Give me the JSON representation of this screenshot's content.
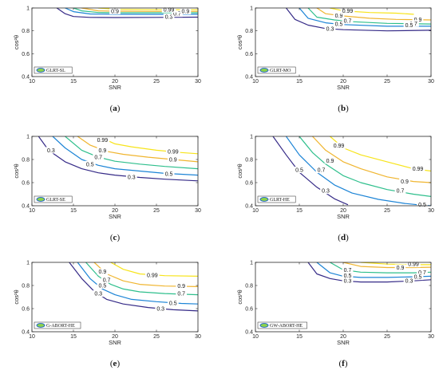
{
  "colors": {
    "0.3": "#352a87",
    "0.5": "#1c84d6",
    "0.7": "#2ebf8c",
    "0.9": "#f0b52f",
    "0.99": "#f7e41a",
    "axis": "#262626",
    "legend_ellipse_fill": "#8cd24a",
    "legend_ellipse_stroke": "#1d62c9"
  },
  "chart_data": [
    {
      "type": "contour",
      "caption": "(a)",
      "caption_letter": "a",
      "legend": "GLRT-SL",
      "legend_position": "bottom-left",
      "xlabel": "SNR",
      "ylabel": "cos²θ",
      "xlim": [
        10,
        30
      ],
      "ylim": [
        0.4,
        1
      ],
      "xticks": [
        "10",
        "15",
        "20",
        "25",
        "30"
      ],
      "yticks": [
        "0.4",
        "0.6",
        "0.8",
        "1"
      ],
      "grid": false,
      "levels": [
        {
          "level": "0.3",
          "x": [
            13.0,
            14.0,
            15.0,
            17.0,
            20.0,
            25.0,
            30.0
          ],
          "y": [
            1.0,
            0.95,
            0.925,
            0.918,
            0.916,
            0.918,
            0.92
          ]
        },
        {
          "level": "0.5",
          "x": [
            14.0,
            15.0,
            17.0,
            20.0,
            25.0,
            30.0
          ],
          "y": [
            1.0,
            0.968,
            0.948,
            0.945,
            0.944,
            0.945
          ]
        },
        {
          "level": "0.7",
          "x": [
            15.0,
            16.0,
            18.0,
            20.0,
            25.0,
            30.0
          ],
          "y": [
            1.0,
            0.975,
            0.96,
            0.958,
            0.958,
            0.958
          ]
        },
        {
          "level": "0.9",
          "x": [
            16.0,
            18.0,
            20.0,
            25.0,
            30.0
          ],
          "y": [
            1.0,
            0.975,
            0.972,
            0.97,
            0.97
          ]
        },
        {
          "level": "0.99",
          "x": [
            18.0,
            20.0,
            25.0,
            30.0
          ],
          "y": [
            1.0,
            0.988,
            0.985,
            0.985
          ]
        }
      ],
      "labels": [
        {
          "text": "0.3",
          "x": 26.5,
          "y": 0.925
        },
        {
          "text": "0.7",
          "x": 27.5,
          "y": 0.95
        },
        {
          "text": "0.9",
          "x": 20.0,
          "y": 0.973
        },
        {
          "text": "0.9",
          "x": 28.5,
          "y": 0.972
        },
        {
          "text": "0.99",
          "x": 26.5,
          "y": 0.987
        }
      ]
    },
    {
      "type": "contour",
      "caption": "(b)",
      "caption_letter": "b",
      "legend": "GLRT-MO",
      "legend_position": "bottom-left",
      "xlabel": "SNR",
      "ylabel": "cos²θ",
      "xlim": [
        10,
        30
      ],
      "ylim": [
        0.4,
        1
      ],
      "xticks": [
        "10",
        "15",
        "20",
        "25",
        "30"
      ],
      "yticks": [
        "0.4",
        "0.6",
        "0.8",
        "1"
      ],
      "grid": false,
      "levels": [
        {
          "level": "0.3",
          "x": [
            13.5,
            14.5,
            16.0,
            18.0,
            20.0,
            25.0,
            30.0
          ],
          "y": [
            1.0,
            0.9,
            0.85,
            0.82,
            0.81,
            0.8,
            0.805
          ]
        },
        {
          "level": "0.5",
          "x": [
            15.0,
            16.0,
            18.0,
            20.0,
            25.0,
            30.0
          ],
          "y": [
            1.0,
            0.91,
            0.87,
            0.855,
            0.84,
            0.84
          ]
        },
        {
          "level": "0.7",
          "x": [
            16.0,
            17.0,
            19.0,
            21.0,
            25.0,
            30.0
          ],
          "y": [
            1.0,
            0.92,
            0.895,
            0.88,
            0.865,
            0.86
          ]
        },
        {
          "level": "0.9",
          "x": [
            17.0,
            18.0,
            20.0,
            23.0,
            26.0,
            30.0
          ],
          "y": [
            1.0,
            0.95,
            0.93,
            0.91,
            0.9,
            0.895
          ]
        },
        {
          "level": "0.99",
          "x": [
            18.5,
            20.0,
            23.0,
            26.0,
            28.0
          ],
          "y": [
            1.0,
            0.975,
            0.96,
            0.955,
            0.945
          ]
        }
      ],
      "labels": [
        {
          "text": "0.3",
          "x": 18.5,
          "y": 0.82
        },
        {
          "text": "0.5",
          "x": 19.5,
          "y": 0.86
        },
        {
          "text": "0.7",
          "x": 20.5,
          "y": 0.89
        },
        {
          "text": "0.9",
          "x": 19.5,
          "y": 0.935
        },
        {
          "text": "0.99",
          "x": 20.5,
          "y": 0.975
        },
        {
          "text": "0.9",
          "x": 28.5,
          "y": 0.9
        },
        {
          "text": "0.7",
          "x": 28.0,
          "y": 0.865
        },
        {
          "text": "0.5",
          "x": 27.5,
          "y": 0.85
        }
      ]
    },
    {
      "type": "contour",
      "caption": "(c)",
      "caption_letter": "c",
      "legend": "GLRT-SE",
      "legend_position": "bottom-left",
      "xlabel": "SNR",
      "ylabel": "cos²θ",
      "xlim": [
        10,
        30
      ],
      "ylim": [
        0.4,
        1
      ],
      "xticks": [
        "10",
        "15",
        "20",
        "25",
        "30"
      ],
      "yticks": [
        "0.4",
        "0.6",
        "0.8",
        "1"
      ],
      "grid": false,
      "levels": [
        {
          "level": "0.3",
          "x": [
            10.8,
            12.0,
            14.0,
            16.0,
            18.0,
            20.0,
            23.0,
            26.0,
            30.0
          ],
          "y": [
            1.0,
            0.88,
            0.78,
            0.72,
            0.685,
            0.665,
            0.645,
            0.63,
            0.615
          ]
        },
        {
          "level": "0.5",
          "x": [
            12.5,
            14.0,
            16.0,
            18.0,
            20.0,
            23.0,
            26.0,
            30.0
          ],
          "y": [
            1.0,
            0.9,
            0.8,
            0.75,
            0.72,
            0.7,
            0.68,
            0.665
          ]
        },
        {
          "level": "0.7",
          "x": [
            14.0,
            16.0,
            18.0,
            20.0,
            23.0,
            26.0,
            30.0
          ],
          "y": [
            1.0,
            0.88,
            0.82,
            0.785,
            0.76,
            0.74,
            0.72
          ]
        },
        {
          "level": "0.9",
          "x": [
            15.5,
            17.0,
            19.0,
            21.0,
            24.0,
            27.0,
            30.0
          ],
          "y": [
            1.0,
            0.925,
            0.87,
            0.845,
            0.82,
            0.8,
            0.78
          ]
        },
        {
          "level": "0.99",
          "x": [
            18.0,
            20.0,
            22.0,
            25.0,
            28.0,
            30.0
          ],
          "y": [
            1.0,
            0.935,
            0.91,
            0.88,
            0.86,
            0.85
          ]
        }
      ],
      "labels": [
        {
          "text": "0.3",
          "x": 12.3,
          "y": 0.88
        },
        {
          "text": "0.5",
          "x": 17.0,
          "y": 0.76
        },
        {
          "text": "0.7",
          "x": 18.0,
          "y": 0.82
        },
        {
          "text": "0.9",
          "x": 18.5,
          "y": 0.88
        },
        {
          "text": "0.99",
          "x": 18.5,
          "y": 0.97
        },
        {
          "text": "0.3",
          "x": 22.0,
          "y": 0.65
        },
        {
          "text": "0.5",
          "x": 26.5,
          "y": 0.675
        },
        {
          "text": "0.9",
          "x": 27.0,
          "y": 0.8
        },
        {
          "text": "0.99",
          "x": 27.0,
          "y": 0.87
        }
      ]
    },
    {
      "type": "contour",
      "caption": "(d)",
      "caption_letter": "d",
      "legend": "GLRT-HE",
      "legend_position": "bottom-left",
      "xlabel": "SNR",
      "ylabel": "cos²θ",
      "xlim": [
        10,
        30
      ],
      "ylim": [
        0.4,
        1
      ],
      "xticks": [
        "10",
        "15",
        "20",
        "25",
        "30"
      ],
      "yticks": [
        "0.4",
        "0.6",
        "0.8",
        "1"
      ],
      "grid": false,
      "levels": [
        {
          "level": "0.3",
          "x": [
            12.0,
            13.5,
            15.0,
            17.0,
            19.0,
            20.5
          ],
          "y": [
            1.0,
            0.84,
            0.69,
            0.56,
            0.46,
            0.41
          ]
        },
        {
          "level": "0.5",
          "x": [
            13.5,
            15.0,
            17.0,
            19.0,
            21.0,
            24.0,
            27.0,
            29.0,
            30.0
          ],
          "y": [
            1.0,
            0.84,
            0.69,
            0.58,
            0.51,
            0.455,
            0.42,
            0.405,
            0.4
          ]
        },
        {
          "level": "0.7",
          "x": [
            15.0,
            16.5,
            18.0,
            20.0,
            22.0,
            25.0,
            28.0,
            30.0
          ],
          "y": [
            1.0,
            0.86,
            0.76,
            0.66,
            0.6,
            0.54,
            0.5,
            0.48
          ]
        },
        {
          "level": "0.9",
          "x": [
            16.5,
            18.0,
            20.0,
            22.0,
            25.0,
            28.0,
            30.0
          ],
          "y": [
            1.0,
            0.88,
            0.78,
            0.72,
            0.65,
            0.61,
            0.6
          ]
        },
        {
          "level": "0.99",
          "x": [
            18.5,
            20.0,
            22.0,
            25.0,
            28.0,
            30.0
          ],
          "y": [
            1.0,
            0.9,
            0.84,
            0.78,
            0.72,
            0.7
          ]
        }
      ],
      "labels": [
        {
          "text": "0.5",
          "x": 15.0,
          "y": 0.71
        },
        {
          "text": "0.3",
          "x": 18.0,
          "y": 0.53
        },
        {
          "text": "0.7",
          "x": 17.5,
          "y": 0.71
        },
        {
          "text": "0.9",
          "x": 18.5,
          "y": 0.79
        },
        {
          "text": "0.99",
          "x": 19.5,
          "y": 0.92
        },
        {
          "text": "0.99",
          "x": 28.5,
          "y": 0.72
        },
        {
          "text": "0.9",
          "x": 27.0,
          "y": 0.61
        },
        {
          "text": "0.7",
          "x": 26.5,
          "y": 0.53
        },
        {
          "text": "0.5",
          "x": 29.0,
          "y": 0.41
        }
      ]
    },
    {
      "type": "contour",
      "caption": "(e)",
      "caption_letter": "e",
      "legend": "G-ABORT-HE",
      "legend_position": "bottom-left",
      "xlabel": "SNR",
      "ylabel": "cos²θ",
      "xlim": [
        10,
        30
      ],
      "ylim": [
        0.4,
        1
      ],
      "xticks": [
        "10",
        "15",
        "20",
        "25",
        "30"
      ],
      "yticks": [
        "0.4",
        "0.6",
        "0.8",
        "1"
      ],
      "grid": false,
      "levels": [
        {
          "level": "0.3",
          "x": [
            14.5,
            16.0,
            17.5,
            19.0,
            21.0,
            24.0,
            27.0,
            30.0
          ],
          "y": [
            1.0,
            0.86,
            0.75,
            0.68,
            0.64,
            0.61,
            0.59,
            0.58
          ]
        },
        {
          "level": "0.5",
          "x": [
            15.5,
            17.0,
            18.5,
            20.0,
            22.0,
            25.0,
            28.0,
            30.0
          ],
          "y": [
            1.0,
            0.86,
            0.77,
            0.72,
            0.68,
            0.66,
            0.645,
            0.64
          ]
        },
        {
          "level": "0.7",
          "x": [
            16.5,
            18.0,
            19.5,
            21.0,
            23.0,
            26.0,
            30.0
          ],
          "y": [
            1.0,
            0.88,
            0.81,
            0.77,
            0.745,
            0.73,
            0.72
          ]
        },
        {
          "level": "0.9",
          "x": [
            17.5,
            19.0,
            21.0,
            23.0,
            26.0,
            30.0
          ],
          "y": [
            1.0,
            0.9,
            0.84,
            0.81,
            0.795,
            0.79
          ]
        },
        {
          "level": "0.99",
          "x": [
            19.5,
            21.0,
            23.0,
            26.0,
            30.0
          ],
          "y": [
            1.0,
            0.94,
            0.9,
            0.885,
            0.88
          ]
        }
      ],
      "labels": [
        {
          "text": "0.3",
          "x": 18.0,
          "y": 0.73
        },
        {
          "text": "0.5",
          "x": 18.5,
          "y": 0.8
        },
        {
          "text": "0.7",
          "x": 19.0,
          "y": 0.85
        },
        {
          "text": "0.9",
          "x": 18.5,
          "y": 0.92
        },
        {
          "text": "0.99",
          "x": 24.5,
          "y": 0.89
        },
        {
          "text": "0.9",
          "x": 28.0,
          "y": 0.795
        },
        {
          "text": "0.7",
          "x": 28.0,
          "y": 0.73
        },
        {
          "text": "0.5",
          "x": 27.0,
          "y": 0.65
        },
        {
          "text": "0.3",
          "x": 25.5,
          "y": 0.6
        }
      ]
    },
    {
      "type": "contour",
      "caption": "(f)",
      "caption_letter": "f",
      "legend": "GW-ABORT-HE",
      "legend_position": "bottom-left",
      "xlabel": "SNR",
      "ylabel": "cos²θ",
      "xlim": [
        10,
        30
      ],
      "ylim": [
        0.4,
        1
      ],
      "xticks": [
        "10",
        "15",
        "20",
        "25",
        "30"
      ],
      "yticks": [
        "0.4",
        "0.6",
        "0.8",
        "1"
      ],
      "grid": false,
      "levels": [
        {
          "level": "0.3",
          "x": [
            16.0,
            17.0,
            18.5,
            20.0,
            22.0,
            25.0,
            28.0,
            30.0
          ],
          "y": [
            1.0,
            0.9,
            0.86,
            0.84,
            0.83,
            0.83,
            0.84,
            0.85
          ]
        },
        {
          "level": "0.5",
          "x": [
            17.0,
            18.5,
            20.0,
            22.0,
            25.0,
            28.0,
            30.0
          ],
          "y": [
            1.0,
            0.91,
            0.88,
            0.87,
            0.87,
            0.875,
            0.88
          ]
        },
        {
          "level": "0.7",
          "x": [
            18.5,
            20.0,
            22.0,
            25.0,
            28.0,
            30.0
          ],
          "y": [
            1.0,
            0.935,
            0.915,
            0.91,
            0.91,
            0.915
          ]
        },
        {
          "level": "0.9",
          "x": [
            20.0,
            22.0,
            25.0,
            28.0,
            30.0
          ],
          "y": [
            1.0,
            0.965,
            0.955,
            0.955,
            0.958
          ]
        },
        {
          "level": "0.99",
          "x": [
            22.0,
            25.0,
            28.0,
            30.0
          ],
          "y": [
            1.0,
            0.985,
            0.98,
            0.98
          ]
        }
      ],
      "labels": [
        {
          "text": "0.3",
          "x": 20.5,
          "y": 0.84
        },
        {
          "text": "0.5",
          "x": 20.5,
          "y": 0.885
        },
        {
          "text": "0.7",
          "x": 20.5,
          "y": 0.935
        },
        {
          "text": "0.9",
          "x": 26.5,
          "y": 0.955
        },
        {
          "text": "0.99",
          "x": 28.0,
          "y": 0.985
        },
        {
          "text": "0.7",
          "x": 29.0,
          "y": 0.915
        },
        {
          "text": "0.5",
          "x": 28.5,
          "y": 0.875
        },
        {
          "text": "0.3",
          "x": 27.5,
          "y": 0.84
        }
      ]
    }
  ]
}
